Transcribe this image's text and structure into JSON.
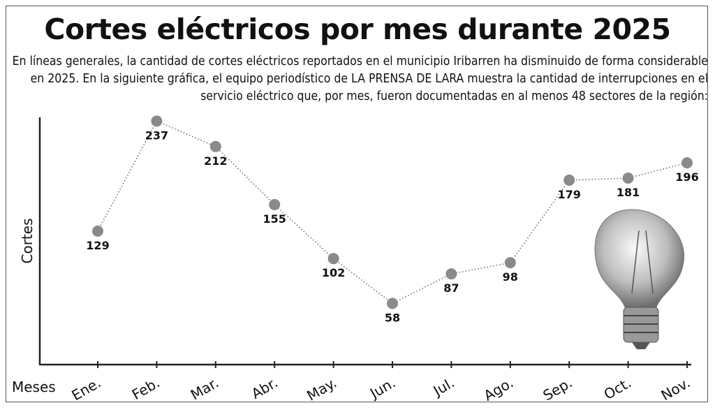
{
  "chart_data": {
    "type": "line",
    "title": "Cortes eléctricos por mes durante 2025",
    "subtitle": "En líneas generales, la cantidad de cortes eléctricos reportados en el municipio Iribarren ha disminuido de forma considerable en 2025. En la siguiente gráfica, el equipo periodístico de LA PRENSA DE LARA muestra la cantidad de interrupciones en el servicio eléctrico que, por mes, fueron documentadas en al menos 48 sectores de la región:",
    "xlabel": "Meses",
    "ylabel": "Cortes",
    "categories": [
      "Ene.",
      "Feb.",
      "Mar.",
      "Abr.",
      "May.",
      "Jun.",
      "Jul.",
      "Ago.",
      "Sep.",
      "Oct.",
      "Nov."
    ],
    "values": [
      129,
      237,
      212,
      155,
      102,
      58,
      87,
      98,
      179,
      181,
      196
    ],
    "ylim": [
      0,
      240
    ],
    "grid": false,
    "line_style": "dotted",
    "marker_color": "#8a8a8a",
    "decoration": "light-bulb-illustration"
  }
}
